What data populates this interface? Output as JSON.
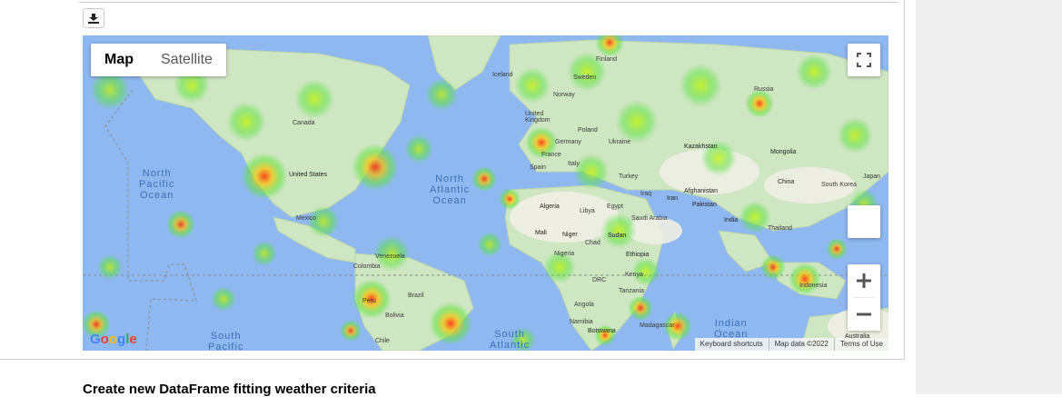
{
  "map": {
    "type_buttons": [
      "Map",
      "Satellite"
    ],
    "active_type": "Map",
    "attribution": [
      "Keyboard shortcuts",
      "Map data ©2022",
      "Terms of Use"
    ],
    "logo_text": "Google",
    "oceans": [
      {
        "name": "North Pacific Ocean",
        "lines": [
          "North",
          "Pacific",
          "Ocean"
        ]
      },
      {
        "name": "North Atlantic Ocean",
        "lines": [
          "North",
          "Atlantic",
          "Ocean"
        ]
      },
      {
        "name": "South Pacific",
        "lines": [
          "South",
          "Pacific"
        ]
      },
      {
        "name": "South Atlantic",
        "lines": [
          "South",
          "Atlantic"
        ]
      },
      {
        "name": "Indian Ocean",
        "lines": [
          "Indian",
          "Ocean"
        ]
      }
    ],
    "places": [
      "Canada",
      "United States",
      "Mexico",
      "Venezuela",
      "Colombia",
      "Peru",
      "Brazil",
      "Bolivia",
      "Chile",
      "Iceland",
      "Finland",
      "Sweden",
      "Norway",
      "United Kingdom",
      "Poland",
      "Germany",
      "Ukraine",
      "France",
      "Italy",
      "Spain",
      "Turkey",
      "Kazakhstan",
      "Russia",
      "Mongolia",
      "China",
      "South Korea",
      "Japan",
      "Iraq",
      "Iran",
      "Afghanistan",
      "Pakistan",
      "India",
      "Thailand",
      "Indonesia",
      "Egypt",
      "Libya",
      "Algeria",
      "Mali",
      "Niger",
      "Chad",
      "Sudan",
      "Saudi Arabia",
      "Nigeria",
      "Ethiopia",
      "Kenya",
      "DRC",
      "Tanzania",
      "Angola",
      "Namibia",
      "Botswana",
      "Madagascar",
      "Australia"
    ],
    "accent_color": "#8fb8f0"
  },
  "heading": "Create new DataFrame fitting weather criteria"
}
